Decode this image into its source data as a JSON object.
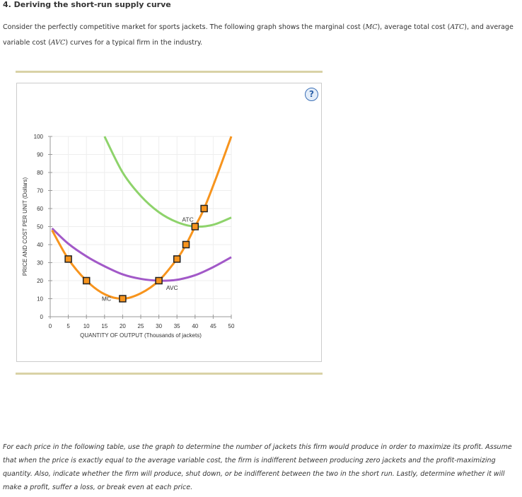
{
  "title": "4. Deriving the short-run supply curve",
  "intro": {
    "p1": "Consider the perfectly competitive market for sports jackets. The following graph shows the marginal cost (",
    "mc": "MC",
    "p2": "), average total cost (",
    "atc": "ATC",
    "p3": "), and average variable cost (",
    "avc": "AVC",
    "p4": ") curves for a typical firm in the industry."
  },
  "help_icon": "question-mark-icon",
  "help_label": "?",
  "chart_data": {
    "type": "line",
    "xlabel": "QUANTITY OF OUTPUT (Thousands of jackets)",
    "ylabel": "PRICE AND COST PER UNIT (Dollars)",
    "xlim": [
      0,
      50
    ],
    "ylim": [
      0,
      100
    ],
    "xticks": [
      0,
      5,
      10,
      15,
      20,
      25,
      30,
      35,
      40,
      45,
      50
    ],
    "yticks": [
      0,
      10,
      20,
      30,
      40,
      50,
      60,
      70,
      80,
      90,
      100
    ],
    "grid": true,
    "series": [
      {
        "name": "MC",
        "color": "#f7941d",
        "points": [
          [
            0.5,
            48
          ],
          [
            5,
            32
          ],
          [
            10,
            20
          ],
          [
            15,
            12.5
          ],
          [
            20,
            10
          ],
          [
            25,
            13
          ],
          [
            30,
            20
          ],
          [
            35,
            32
          ],
          [
            37.5,
            40
          ],
          [
            40,
            50
          ],
          [
            42.5,
            60
          ],
          [
            46,
            78
          ],
          [
            50,
            100
          ]
        ],
        "markers": [
          [
            5,
            32
          ],
          [
            10,
            20
          ],
          [
            20,
            10
          ],
          [
            30,
            20
          ],
          [
            35,
            32
          ],
          [
            37.5,
            40
          ],
          [
            40,
            50
          ],
          [
            42.5,
            60
          ]
        ]
      },
      {
        "name": "AVC",
        "color": "#a259c8",
        "points": [
          [
            0.5,
            49
          ],
          [
            5,
            40.5
          ],
          [
            10,
            33.5
          ],
          [
            15,
            28
          ],
          [
            20,
            23.5
          ],
          [
            25,
            21
          ],
          [
            30,
            20
          ],
          [
            35,
            20.5
          ],
          [
            40,
            23
          ],
          [
            45,
            27.5
          ],
          [
            50,
            33
          ]
        ]
      },
      {
        "name": "ATC",
        "color": "#8ed36b",
        "points": [
          [
            15,
            100
          ],
          [
            20,
            80
          ],
          [
            25,
            67
          ],
          [
            30,
            58
          ],
          [
            35,
            52.5
          ],
          [
            40,
            50
          ],
          [
            45,
            51
          ],
          [
            50,
            55
          ]
        ]
      }
    ]
  },
  "instructions": "For each price in the following table, use the graph to determine the number of jackets this firm would produce in order to maximize its profit. Assume that when the price is exactly equal to the average variable cost, the firm is indifferent between producing zero jackets and the profit-maximizing quantity. Also, indicate whether the firm will produce, shut down, or be indifferent between the two in the short run. Lastly, determine whether it will make a profit, suffer a loss, or break even at each price."
}
